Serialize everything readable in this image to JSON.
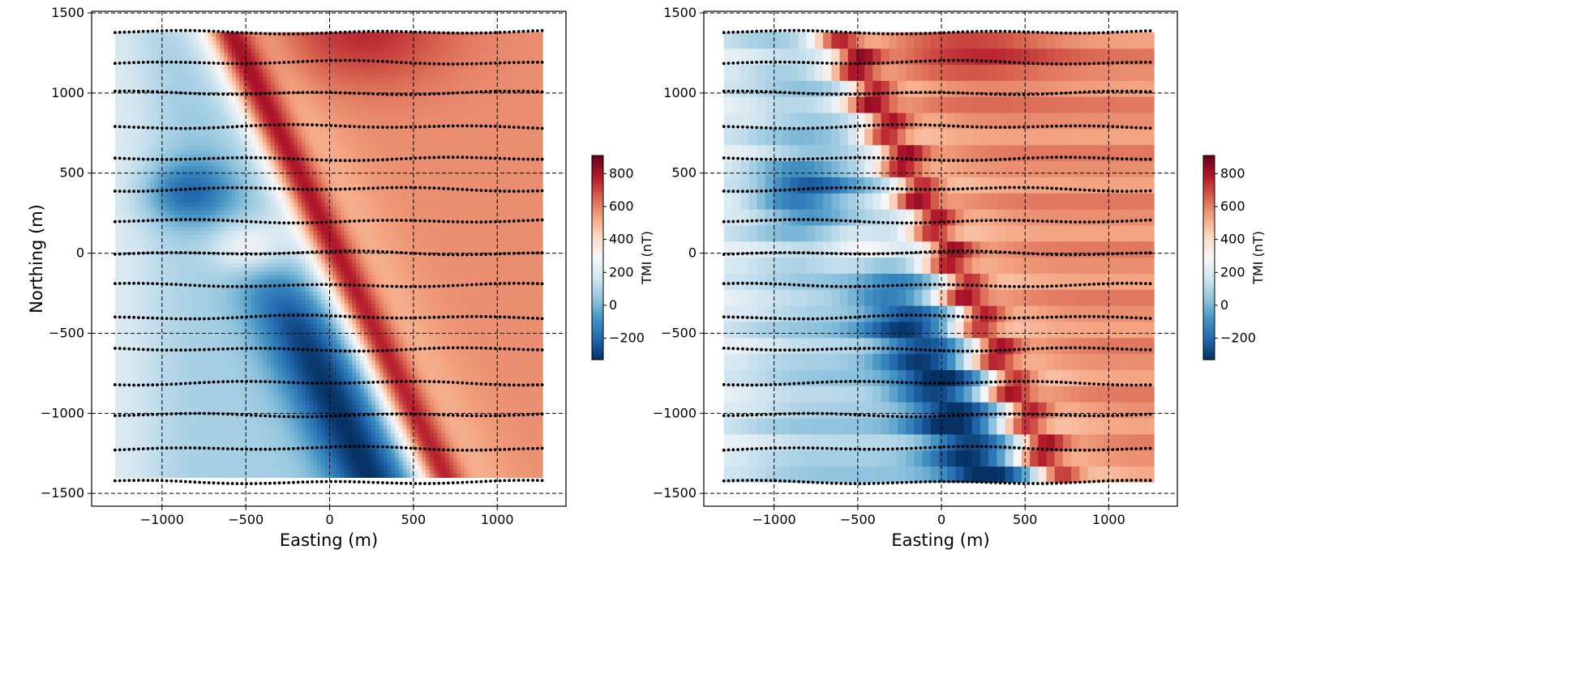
{
  "chart_data": [
    {
      "type": "heatmap",
      "xlabel": "Easting (m)",
      "ylabel": "Northing (m)",
      "xlim": [
        -1420,
        1410
      ],
      "ylim": [
        -1580,
        1510
      ],
      "xticks": [
        -1000,
        -500,
        0,
        500,
        1000
      ],
      "yticks": [
        -1500,
        -1000,
        -500,
        0,
        500,
        1000,
        1500
      ],
      "xtick_labels": [
        "−1000",
        "−500",
        "0",
        "500",
        "1000"
      ],
      "ytick_labels": [
        "−1500",
        "−1000",
        "−500",
        "0",
        "500",
        "1000",
        "1500"
      ],
      "grid": true,
      "data_extent": {
        "x": [
          -1280,
          1270
        ],
        "y": [
          -1400,
          1380
        ]
      },
      "grid_style": "smooth",
      "observation_lines_northing": [
        1380,
        1190,
        1000,
        790,
        590,
        400,
        200,
        0,
        -200,
        -400,
        -600,
        -810,
        -1010,
        -1220,
        -1430
      ],
      "colorbar": {
        "label": "TMI (nT)",
        "ticks": [
          -200,
          0,
          200,
          400,
          600,
          800
        ],
        "tick_labels": [
          "−200",
          "0",
          "200",
          "400",
          "600",
          "800"
        ],
        "range": [
          -330,
          910
        ],
        "cmap": "RdBu_r"
      }
    },
    {
      "type": "heatmap",
      "xlabel": "Easting (m)",
      "ylabel": "",
      "xlim": [
        -1420,
        1410
      ],
      "ylim": [
        -1580,
        1510
      ],
      "xticks": [
        -1000,
        -500,
        0,
        500,
        1000
      ],
      "yticks": [
        -1500,
        -1000,
        -500,
        0,
        500,
        1000,
        1500
      ],
      "xtick_labels": [
        "−1000",
        "−500",
        "0",
        "500",
        "1000"
      ],
      "ytick_labels": [
        "−1500",
        "−1000",
        "−500",
        "0",
        "500",
        "1000",
        "1500"
      ],
      "grid": true,
      "data_extent": {
        "x": [
          -1300,
          1270
        ],
        "y": [
          -1430,
          1380
        ]
      },
      "grid_style": "blocky",
      "observation_lines_northing": [
        1380,
        1190,
        1000,
        790,
        590,
        400,
        200,
        0,
        -200,
        -400,
        -600,
        -810,
        -1010,
        -1220,
        -1430
      ],
      "colorbar": {
        "label": "TMI (nT)",
        "ticks": [
          -200,
          0,
          200,
          400,
          600,
          800
        ],
        "tick_labels": [
          "−200",
          "0",
          "200",
          "400",
          "600",
          "800"
        ],
        "range": [
          -330,
          910
        ],
        "cmap": "RdBu_r"
      }
    }
  ]
}
